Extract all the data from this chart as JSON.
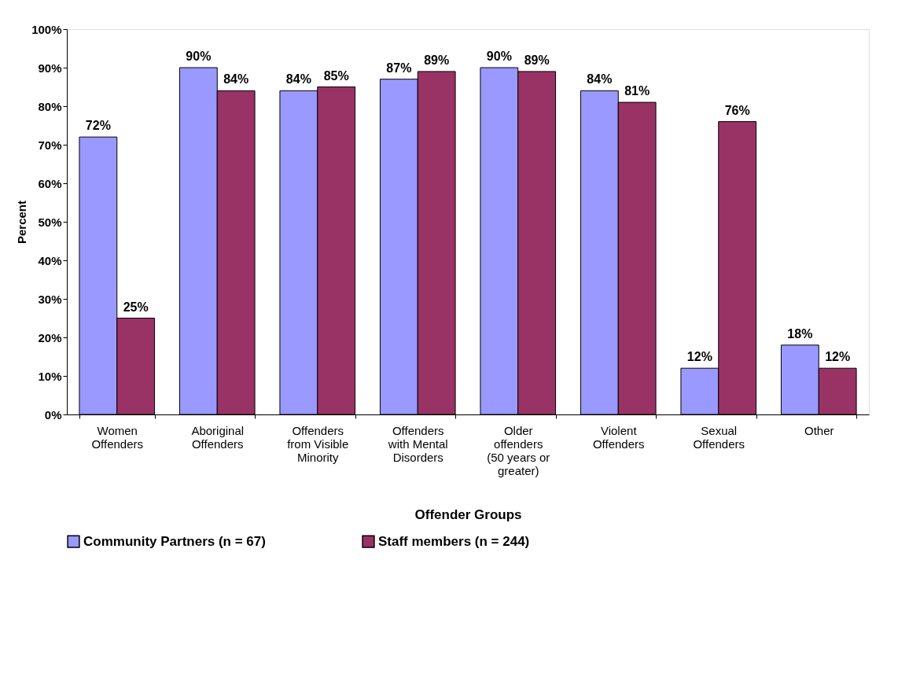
{
  "chart_data": {
    "type": "bar",
    "xlabel": "Offender Groups",
    "ylabel": "Percent",
    "categories": [
      "Women Offenders",
      "Aboriginal Offenders",
      "Offenders from Visible Minority",
      "Offenders with Mental Disorders",
      "Older offenders (50 years or greater)",
      "Violent Offenders",
      "Sexual Offenders",
      "Other"
    ],
    "series": [
      {
        "name": "Community Partners (n = 67)",
        "color": "#9999ff",
        "values": [
          72,
          90,
          84,
          87,
          90,
          84,
          12,
          18
        ],
        "value_labels": [
          "72%",
          "90%",
          "84%",
          "87%",
          "90%",
          "84%",
          "12%",
          "18%"
        ]
      },
      {
        "name": "Staff members (n = 244)",
        "color": "#993366",
        "values": [
          25,
          84,
          85,
          89,
          89,
          81,
          76,
          12
        ],
        "value_labels": [
          "25%",
          "84%",
          "85%",
          "89%",
          "89%",
          "81%",
          "76%",
          "12%"
        ]
      }
    ],
    "ylim": [
      0,
      100
    ],
    "yticks": [
      {
        "value": 0,
        "label": "0%"
      },
      {
        "value": 10,
        "label": "10%"
      },
      {
        "value": 20,
        "label": "20%"
      },
      {
        "value": 30,
        "label": "30%"
      },
      {
        "value": 40,
        "label": "40%"
      },
      {
        "value": 50,
        "label": "50%"
      },
      {
        "value": 60,
        "label": "60%"
      },
      {
        "value": 70,
        "label": "70%"
      },
      {
        "value": 80,
        "label": "80%"
      },
      {
        "value": 90,
        "label": "90%"
      },
      {
        "value": 100,
        "label": "100%"
      }
    ],
    "grid": false,
    "legend": "bottom"
  }
}
